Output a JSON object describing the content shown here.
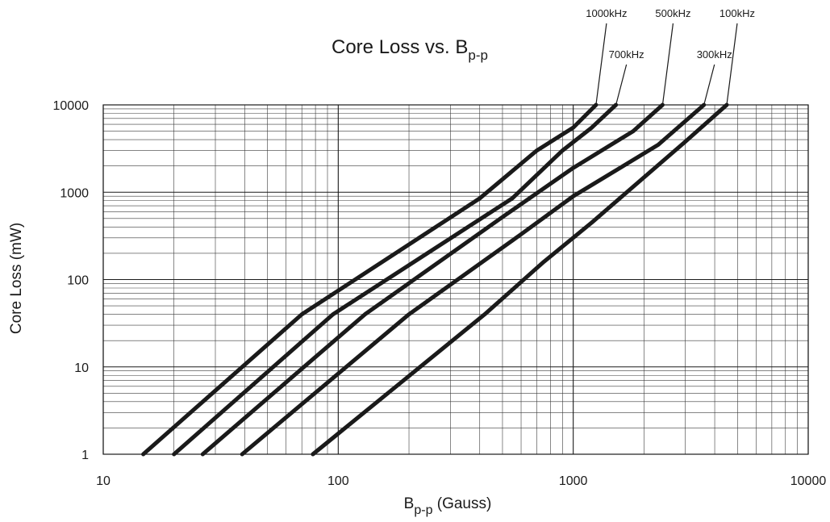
{
  "chart_data": {
    "type": "line",
    "title": "Core Loss vs. B",
    "title_subscript": "p-p",
    "xlabel": "B",
    "xlabel_subscript": "p-p",
    "xlabel_suffix": " (Gauss)",
    "ylabel": "Core Loss (mW)",
    "x_scale": "log",
    "y_scale": "log",
    "xlim": [
      10,
      10000
    ],
    "ylim": [
      1,
      10000
    ],
    "x_ticks": [
      10,
      100,
      1000,
      10000
    ],
    "x_tick_labels": [
      "10",
      "100",
      "1000",
      "10000"
    ],
    "y_ticks": [
      1,
      10,
      100,
      1000,
      10000
    ],
    "y_tick_labels": [
      "1",
      "10",
      "100",
      "1000",
      "10000"
    ],
    "grid": true,
    "line_color": "#1a1a1a",
    "series": [
      {
        "name": "1000kHz",
        "label_row": "upper",
        "x": [
          14.8,
          70,
          400,
          700,
          1000,
          1250
        ],
        "y": [
          1,
          40,
          850,
          3000,
          5500,
          10000
        ]
      },
      {
        "name": "700kHz",
        "label_row": "lower",
        "x": [
          20,
          95,
          550,
          900,
          1200,
          1520
        ],
        "y": [
          1,
          40,
          850,
          3000,
          5500,
          10000
        ]
      },
      {
        "name": "500kHz",
        "label_row": "upper",
        "x": [
          26.5,
          130,
          500,
          1000,
          1800,
          2400
        ],
        "y": [
          1,
          40,
          520,
          1900,
          5000,
          10000
        ]
      },
      {
        "name": "300kHz",
        "label_row": "lower",
        "x": [
          39,
          200,
          600,
          1000,
          2300,
          3600
        ],
        "y": [
          1,
          40,
          330,
          900,
          3500,
          10000
        ]
      },
      {
        "name": "100kHz",
        "label_row": "upper",
        "x": [
          78,
          420,
          750,
          1200,
          3000,
          4500
        ],
        "y": [
          1,
          40,
          160,
          450,
          3800,
          10000
        ]
      }
    ]
  }
}
